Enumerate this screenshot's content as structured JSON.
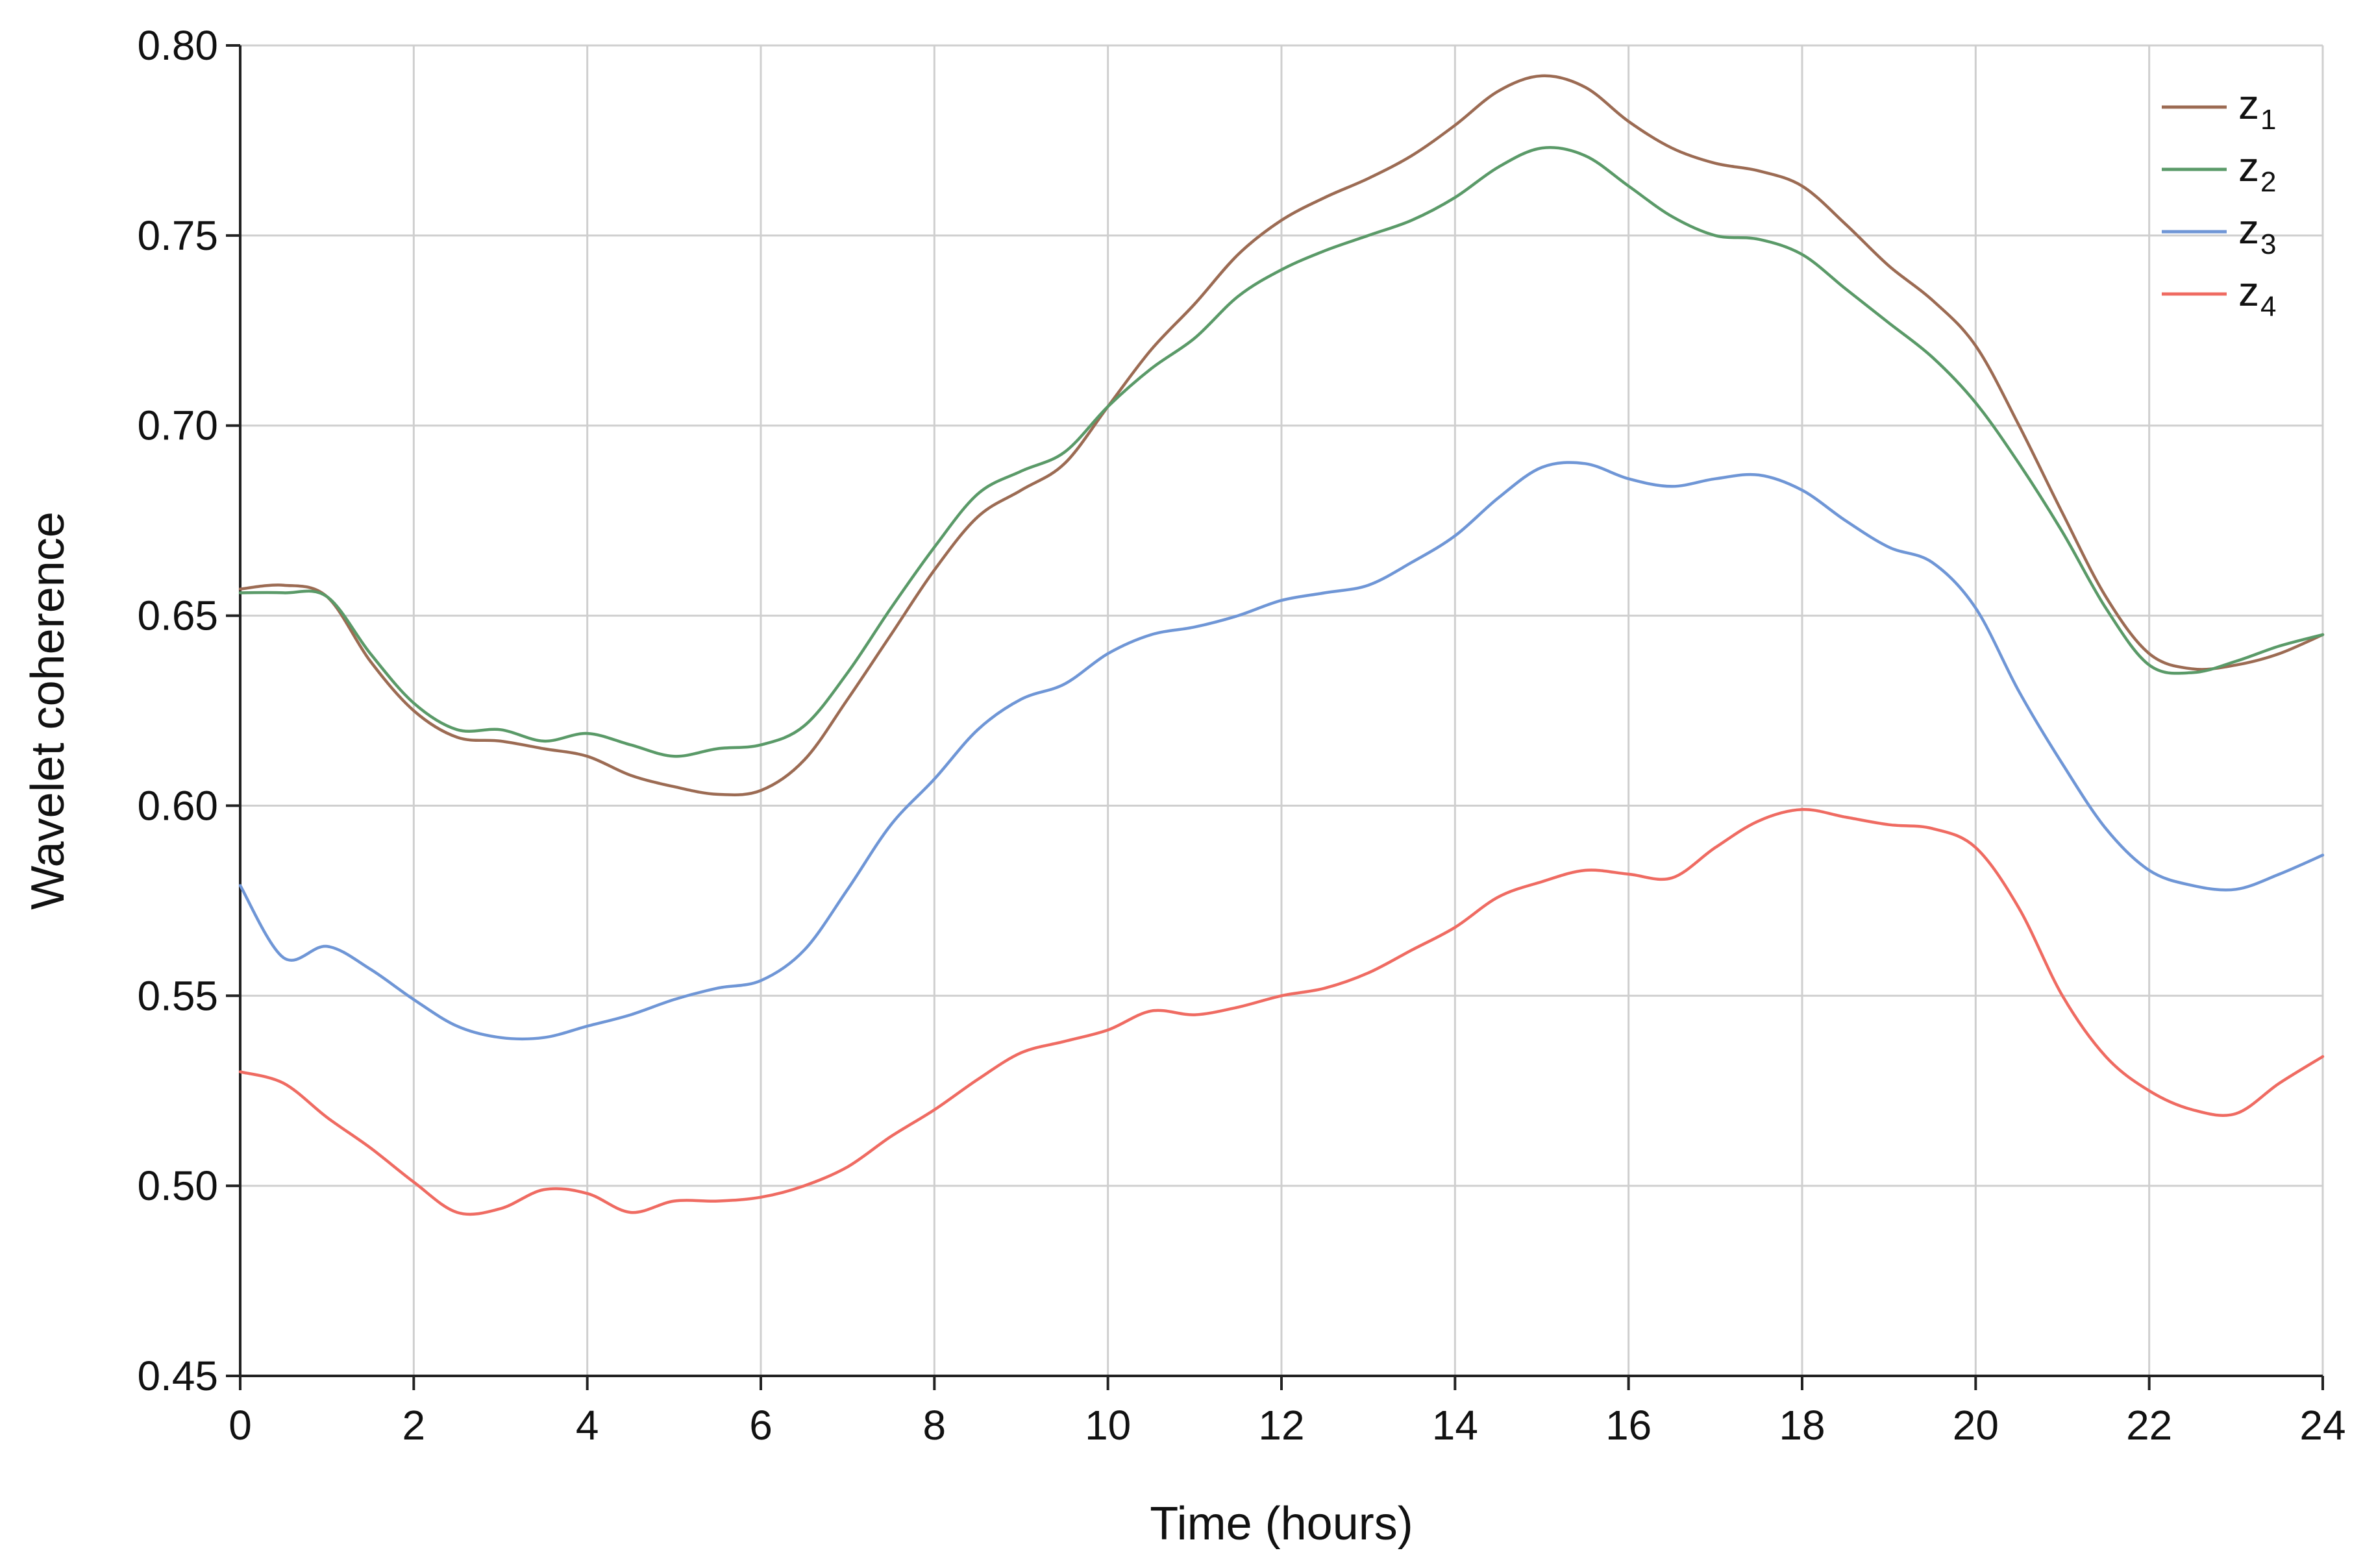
{
  "chart_data": {
    "type": "line",
    "xlabel": "Time (hours)",
    "ylabel": "Wavelet coherence",
    "xlim": [
      0,
      24
    ],
    "ylim": [
      0.45,
      0.8
    ],
    "xticks": [
      0,
      2,
      4,
      6,
      8,
      10,
      12,
      14,
      16,
      18,
      20,
      22,
      24
    ],
    "xtick_labels": [
      "0",
      "2",
      "4",
      "6",
      "8",
      "10",
      "12",
      "14",
      "16",
      "18",
      "20",
      "22",
      "24"
    ],
    "yticks": [
      0.45,
      0.5,
      0.55,
      0.6,
      0.65,
      0.7,
      0.75,
      0.8
    ],
    "ytick_labels": [
      "0.45",
      "0.50",
      "0.55",
      "0.60",
      "0.65",
      "0.70",
      "0.75",
      "0.80"
    ],
    "grid": true,
    "legend_position": "top-right",
    "x": [
      0,
      0.5,
      1,
      1.5,
      2,
      2.5,
      3,
      3.5,
      4,
      4.5,
      5,
      5.5,
      6,
      6.5,
      7,
      7.5,
      8,
      8.5,
      9,
      9.5,
      10,
      10.5,
      11,
      11.5,
      12,
      12.5,
      13,
      13.5,
      14,
      14.5,
      15,
      15.5,
      16,
      16.5,
      17,
      17.5,
      18,
      18.5,
      19,
      19.5,
      20,
      20.5,
      21,
      21.5,
      22,
      22.5,
      23,
      23.5,
      24
    ],
    "series": [
      {
        "name": "z",
        "subscript": "1",
        "color": "#9c6b53",
        "values": [
          0.657,
          0.658,
          0.655,
          0.638,
          0.625,
          0.618,
          0.617,
          0.615,
          0.613,
          0.608,
          0.605,
          0.603,
          0.604,
          0.612,
          0.628,
          0.645,
          0.662,
          0.676,
          0.683,
          0.69,
          0.705,
          0.72,
          0.732,
          0.745,
          0.754,
          0.76,
          0.765,
          0.771,
          0.779,
          0.788,
          0.792,
          0.789,
          0.78,
          0.773,
          0.769,
          0.767,
          0.763,
          0.753,
          0.742,
          0.733,
          0.721,
          0.7,
          0.677,
          0.655,
          0.64,
          0.636,
          0.637,
          0.64,
          0.645
        ]
      },
      {
        "name": "z",
        "subscript": "2",
        "color": "#5a9a68",
        "values": [
          0.656,
          0.656,
          0.655,
          0.64,
          0.627,
          0.62,
          0.62,
          0.617,
          0.619,
          0.616,
          0.613,
          0.615,
          0.616,
          0.621,
          0.635,
          0.652,
          0.668,
          0.682,
          0.688,
          0.693,
          0.705,
          0.715,
          0.723,
          0.734,
          0.741,
          0.746,
          0.75,
          0.754,
          0.76,
          0.768,
          0.773,
          0.771,
          0.763,
          0.755,
          0.75,
          0.749,
          0.745,
          0.736,
          0.727,
          0.718,
          0.706,
          0.69,
          0.672,
          0.652,
          0.637,
          0.635,
          0.638,
          0.642,
          0.645
        ]
      },
      {
        "name": "z",
        "subscript": "3",
        "color": "#6f96d6",
        "values": [
          0.579,
          0.56,
          0.563,
          0.557,
          0.549,
          0.542,
          0.539,
          0.539,
          0.542,
          0.545,
          0.549,
          0.552,
          0.554,
          0.562,
          0.578,
          0.595,
          0.607,
          0.62,
          0.628,
          0.632,
          0.64,
          0.645,
          0.647,
          0.65,
          0.654,
          0.656,
          0.658,
          0.664,
          0.671,
          0.681,
          0.689,
          0.69,
          0.686,
          0.684,
          0.686,
          0.687,
          0.683,
          0.675,
          0.668,
          0.664,
          0.652,
          0.63,
          0.611,
          0.594,
          0.583,
          0.579,
          0.578,
          0.582,
          0.587
        ]
      },
      {
        "name": "z",
        "subscript": "4",
        "color": "#ef6b62",
        "values": [
          0.53,
          0.527,
          0.518,
          0.51,
          0.501,
          0.493,
          0.494,
          0.499,
          0.498,
          0.493,
          0.496,
          0.496,
          0.497,
          0.5,
          0.505,
          0.513,
          0.52,
          0.528,
          0.535,
          0.538,
          0.541,
          0.546,
          0.545,
          0.547,
          0.55,
          0.552,
          0.556,
          0.562,
          0.568,
          0.576,
          0.58,
          0.583,
          0.582,
          0.581,
          0.589,
          0.596,
          0.599,
          0.597,
          0.595,
          0.594,
          0.589,
          0.573,
          0.55,
          0.534,
          0.525,
          0.52,
          0.519,
          0.527,
          0.534
        ]
      }
    ]
  }
}
